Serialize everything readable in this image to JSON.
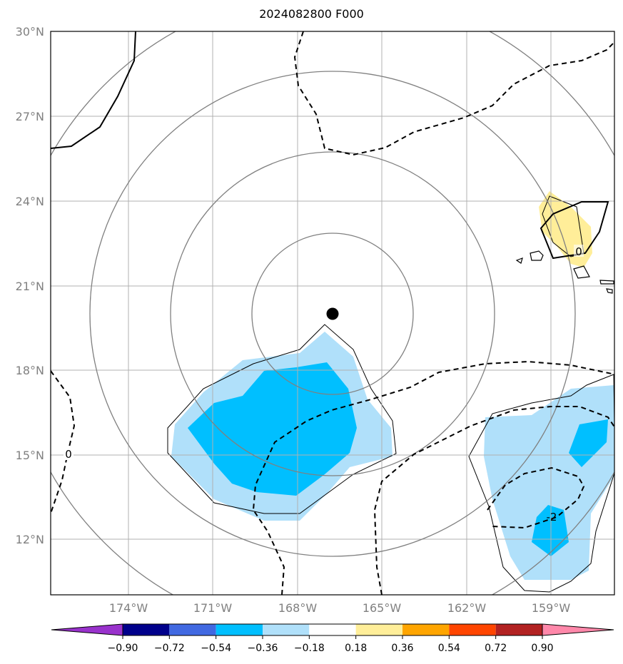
{
  "title": "2024082800 F000",
  "map": {
    "lon_ticks": [
      "174°W",
      "171°W",
      "168°W",
      "165°W",
      "162°W",
      "159°W"
    ],
    "lat_ticks": [
      "30°N",
      "27°N",
      "24°N",
      "21°N",
      "18°N",
      "15°N",
      "12°N"
    ],
    "lon_range": [
      -176.5,
      -156.5
    ],
    "lat_range": [
      10,
      30
    ],
    "storm_center": {
      "lon": -167.2,
      "lat": 20.0
    },
    "contour_labels": [
      "0",
      "0",
      "-2"
    ],
    "grid": true,
    "filled_colors": {
      "light_blue": "#b0e0fa",
      "blue": "#00bfff",
      "light_yellow": "#ffee99"
    }
  },
  "colorbar": {
    "tick_labels": [
      "−0.90",
      "−0.72",
      "−0.54",
      "−0.36",
      "−0.18",
      "0.18",
      "0.36",
      "0.54",
      "0.72",
      "0.90"
    ],
    "colors": [
      "#9932cc",
      "#00008b",
      "#4169e1",
      "#00bfff",
      "#b0e0fa",
      "#ffffff",
      "#ffee99",
      "#ffa500",
      "#ff4500",
      "#b22222",
      "#ff88aa"
    ]
  }
}
